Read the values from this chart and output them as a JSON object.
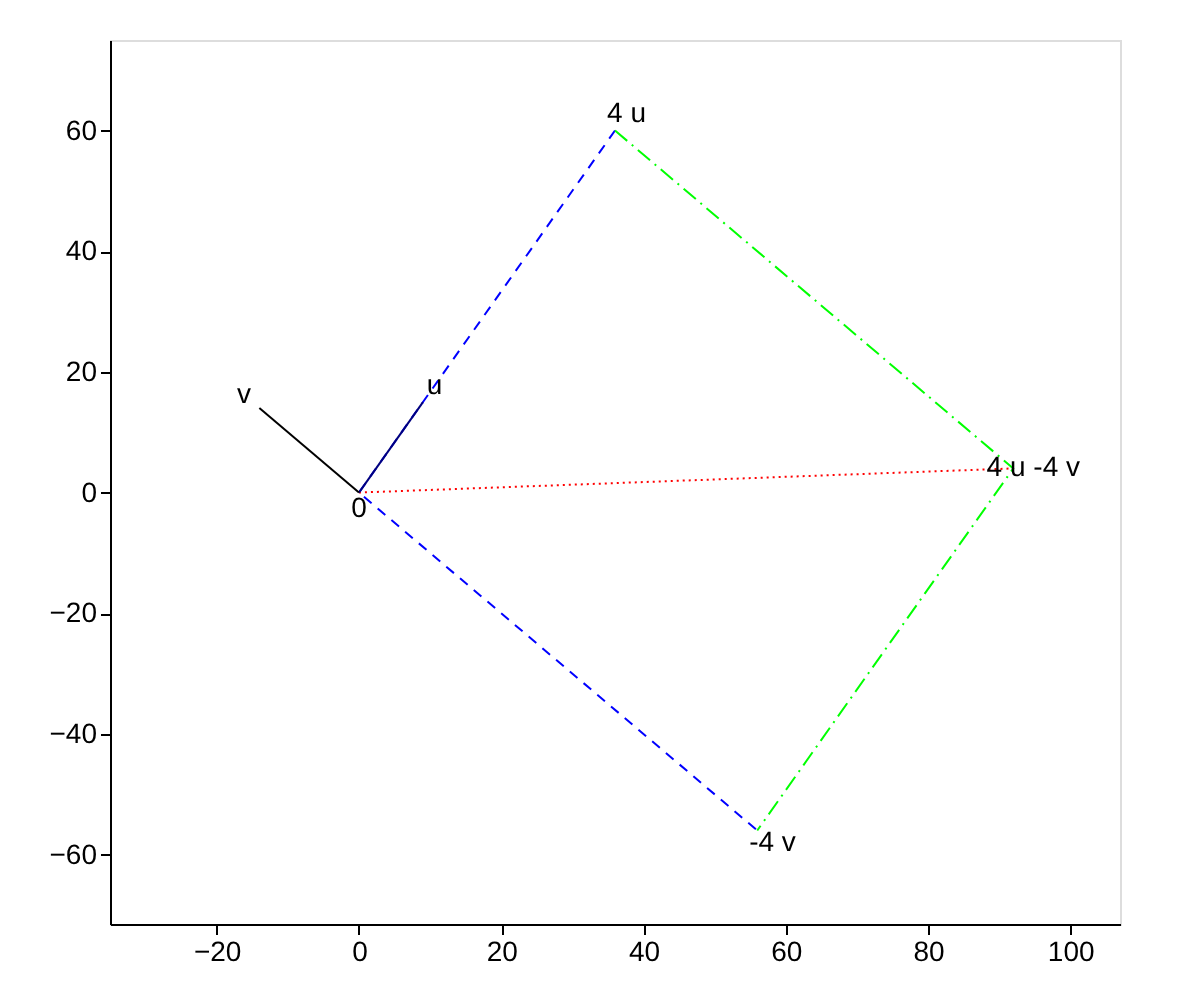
{
  "chart_data": {
    "type": "line",
    "xlim": [
      -35,
      107
    ],
    "ylim": [
      -71.5,
      75
    ],
    "xticks": [
      -20,
      0,
      20,
      40,
      60,
      80,
      100
    ],
    "yticks": [
      -60,
      -40,
      -20,
      0,
      20,
      40,
      60
    ],
    "grid": false,
    "series": [
      {
        "color": "#0000ff",
        "line_style": "dashed",
        "x": [
          36,
          0,
          56
        ],
        "values": [
          60,
          0,
          -56
        ]
      },
      {
        "color": "#00ff00",
        "line_style": "dashdot",
        "x": [
          36,
          92,
          56
        ],
        "values": [
          60,
          4,
          -56
        ]
      },
      {
        "color": "#ff0000",
        "line_style": "dotted",
        "x": [
          0,
          92
        ],
        "values": [
          0,
          4
        ]
      },
      {
        "color": "#000080",
        "line_style": "solid",
        "x": [
          0,
          9
        ],
        "values": [
          0,
          15
        ]
      },
      {
        "color": "#000000",
        "line_style": "solid",
        "x": [
          0,
          -14
        ],
        "values": [
          0,
          14
        ]
      }
    ],
    "annotations": [
      {
        "text": "u",
        "x": 9,
        "y": 15
      },
      {
        "text": "v",
        "x": -14,
        "y": 14
      },
      {
        "text": "0",
        "x": 0,
        "y": 0
      },
      {
        "text": "4 u",
        "x": 36,
        "y": 60
      },
      {
        "text": "-4 v",
        "x": 56,
        "y": -56
      },
      {
        "text": "4 u -4 v",
        "x": 92,
        "y": 4
      }
    ]
  }
}
